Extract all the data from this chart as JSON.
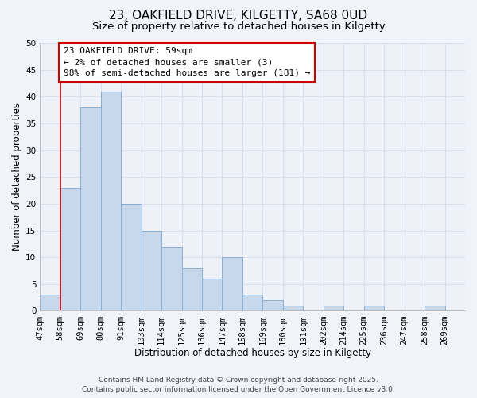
{
  "title": "23, OAKFIELD DRIVE, KILGETTY, SA68 0UD",
  "subtitle": "Size of property relative to detached houses in Kilgetty",
  "xlabel": "Distribution of detached houses by size in Kilgetty",
  "ylabel": "Number of detached properties",
  "bin_labels": [
    "47sqm",
    "58sqm",
    "69sqm",
    "80sqm",
    "91sqm",
    "103sqm",
    "114sqm",
    "125sqm",
    "136sqm",
    "147sqm",
    "158sqm",
    "169sqm",
    "180sqm",
    "191sqm",
    "202sqm",
    "214sqm",
    "225sqm",
    "236sqm",
    "247sqm",
    "258sqm",
    "269sqm"
  ],
  "counts": [
    3,
    23,
    38,
    41,
    20,
    15,
    12,
    8,
    6,
    10,
    3,
    2,
    1,
    0,
    1,
    0,
    1,
    0,
    0,
    1,
    0
  ],
  "bar_color": "#c8d8ec",
  "bar_edge_color": "#8aafd4",
  "marker_color": "#cc0000",
  "marker_bin_index": 1,
  "ylim": [
    0,
    50
  ],
  "yticks": [
    0,
    5,
    10,
    15,
    20,
    25,
    30,
    35,
    40,
    45,
    50
  ],
  "annotation_title": "23 OAKFIELD DRIVE: 59sqm",
  "annotation_line1": "← 2% of detached houses are smaller (3)",
  "annotation_line2": "98% of semi-detached houses are larger (181) →",
  "annotation_box_color": "#ffffff",
  "annotation_box_edge": "#cc0000",
  "footer_line1": "Contains HM Land Registry data © Crown copyright and database right 2025.",
  "footer_line2": "Contains public sector information licensed under the Open Government Licence v3.0.",
  "background_color": "#f0f4fa",
  "plot_bg_color": "#eef2f8",
  "grid_color": "#d8e0ee",
  "title_fontsize": 11,
  "subtitle_fontsize": 9.5,
  "axis_label_fontsize": 8.5,
  "tick_fontsize": 7.5,
  "annotation_fontsize": 8,
  "footer_fontsize": 6.5
}
